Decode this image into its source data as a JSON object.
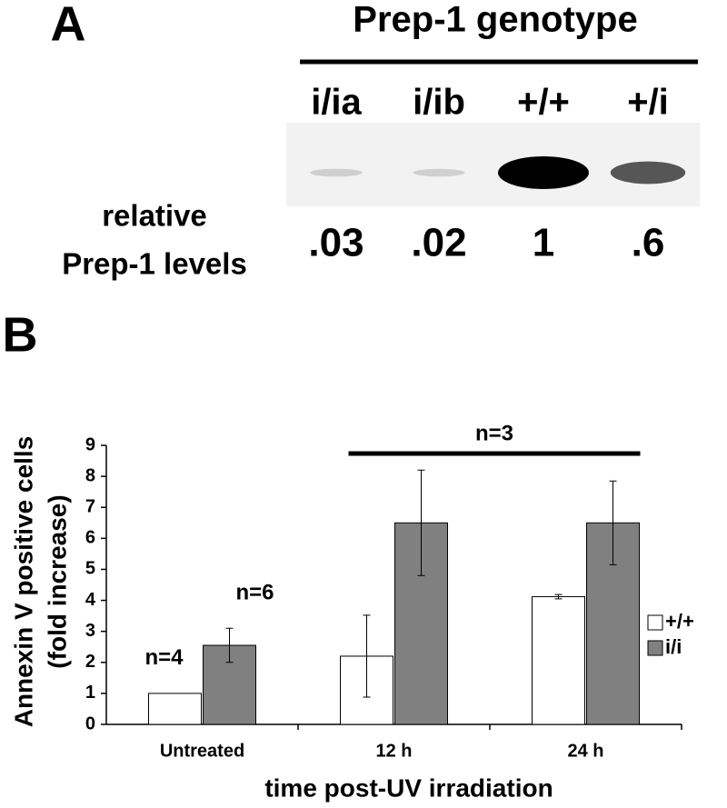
{
  "panel_a": {
    "label": "A",
    "title": "Prep-1 genotype",
    "lanes": [
      "i/ia",
      "i/ib",
      "+/+",
      "+/i"
    ],
    "row_label": [
      "relative",
      "Prep-1 levels"
    ],
    "levels": [
      0.03,
      0.02,
      1,
      0.6
    ],
    "level_labels": [
      ".03",
      ".02",
      "1",
      ".6"
    ]
  },
  "chart_data": {
    "type": "bar",
    "label": "B",
    "ylabel": [
      "Annexin V positive cells",
      "(fold  increase)"
    ],
    "xlabel": "time post-UV irradiation",
    "categories": [
      "Untreated",
      "12 h",
      "24 h"
    ],
    "series": [
      {
        "name": "+/+",
        "color": "#ffffff",
        "values": [
          1,
          2.2,
          4.12
        ],
        "errors": [
          null,
          1.32,
          0.07
        ]
      },
      {
        "name": "i/i",
        "color": "#808080",
        "values": [
          2.55,
          6.5,
          6.5
        ],
        "errors": [
          0.55,
          1.7,
          1.35
        ]
      }
    ],
    "annotations": [
      "n=4",
      "n=6",
      "n=3"
    ],
    "ylim": [
      0,
      9
    ],
    "yticks": [
      0,
      1,
      2,
      3,
      4,
      5,
      6,
      7,
      8,
      9
    ],
    "grid": false,
    "legend": "right"
  }
}
